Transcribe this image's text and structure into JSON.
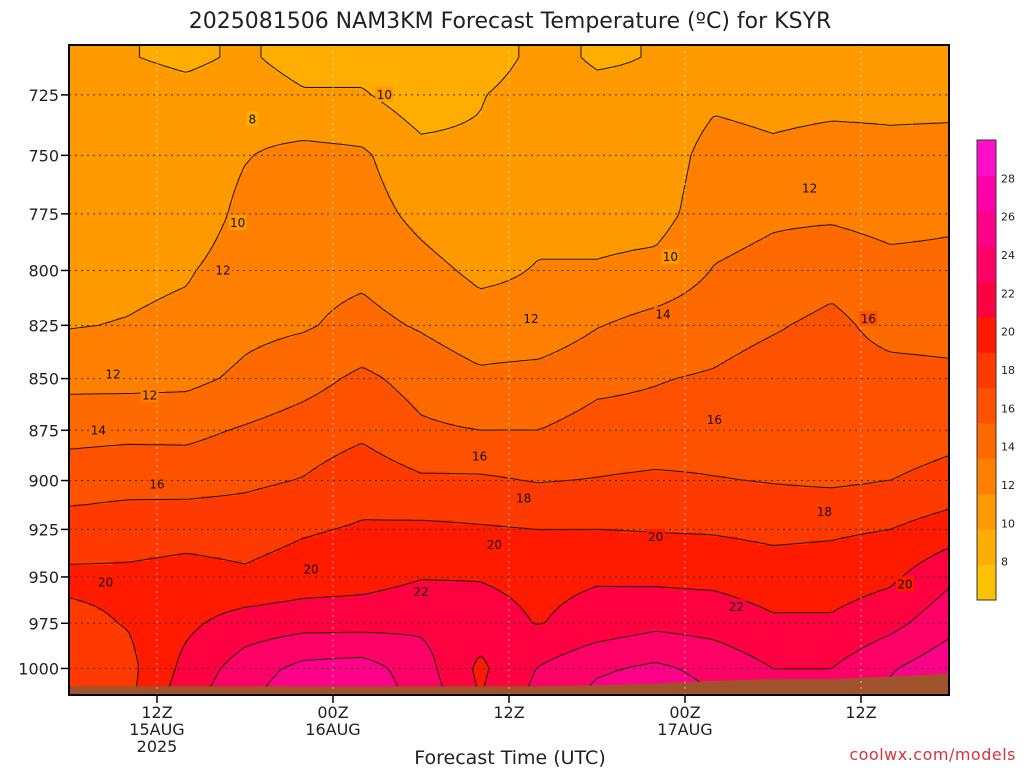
{
  "chart_data": {
    "type": "heatmap",
    "title": "2025081506 NAM3KM Forecast Temperature (ºC) for KSYR",
    "xlabel": "Forecast Time (UTC)",
    "ylabel": "",
    "credit": "coolwx.com/models",
    "y_scale": "log",
    "y_inverted": true,
    "ylim": [
      1015,
      705
    ],
    "y_ticks": [
      "725",
      "750",
      "775",
      "800",
      "825",
      "850",
      "875",
      "900",
      "925",
      "950",
      "975",
      "1000"
    ],
    "xlim": [
      6,
      66
    ],
    "x_ticks": [
      {
        "hour": 12,
        "lines": [
          "12Z",
          "15AUG",
          "2025"
        ]
      },
      {
        "hour": 24,
        "lines": [
          "00Z",
          "16AUG"
        ]
      },
      {
        "hour": 36,
        "lines": [
          "12Z"
        ]
      },
      {
        "hour": 48,
        "lines": [
          "00Z",
          "17AUG"
        ]
      },
      {
        "hour": 60,
        "lines": [
          "12Z"
        ]
      }
    ],
    "grid": true,
    "colorbar": {
      "levels": [
        6,
        8,
        10,
        12,
        14,
        16,
        18,
        20,
        22,
        24,
        26,
        28,
        30
      ],
      "labels": [
        "8",
        "10",
        "12",
        "14",
        "16",
        "18",
        "20",
        "22",
        "24",
        "26",
        "28"
      ],
      "colors": [
        "#ffc200",
        "#ffad00",
        "#ff9900",
        "#ff8000",
        "#ff6a00",
        "#ff5200",
        "#ff3a00",
        "#ff1a00",
        "#ff0040",
        "#ff0066",
        "#ff0088",
        "#ff00a8",
        "#ff10c8"
      ]
    },
    "x": [
      6,
      10,
      14,
      18,
      22,
      26,
      30,
      34,
      38,
      42,
      46,
      50,
      54,
      58,
      62,
      66
    ],
    "series": [
      {
        "pressure": 710,
        "temperature": [
          10.4,
          10.1,
          9.6,
          10.3,
          9.2,
          9.2,
          8.0,
          8.4,
          10.8,
          9.7,
          10.1,
          10.6,
          10.8,
          10.6,
          10.7,
          10.9
        ]
      },
      {
        "pressure": 725,
        "temperature": [
          10.9,
          11.0,
          10.6,
          11.1,
          10.2,
          10.2,
          8.9,
          9.8,
          11.5,
          10.6,
          10.5,
          11.6,
          11.3,
          11.4,
          11.5,
          11.5
        ]
      },
      {
        "pressure": 750,
        "temperature": [
          10.6,
          11.5,
          10.8,
          11.9,
          12.6,
          12.3,
          10.6,
          10.5,
          11.3,
          10.1,
          10.8,
          12.8,
          12.4,
          12.8,
          12.5,
          12.6
        ]
      },
      {
        "pressure": 775,
        "temperature": [
          10.6,
          11.5,
          10.8,
          12.5,
          12.9,
          12.8,
          11.5,
          10.5,
          11.6,
          11.2,
          11.2,
          13.2,
          13.7,
          13.7,
          13.3,
          13.6
        ]
      },
      {
        "pressure": 800,
        "temperature": [
          11.3,
          11.5,
          11.8,
          13.0,
          13.4,
          13.6,
          12.6,
          11.6,
          12.1,
          12.2,
          12.6,
          14.1,
          14.6,
          15.3,
          14.6,
          14.6
        ]
      },
      {
        "pressure": 825,
        "temperature": [
          11.9,
          12.1,
          12.5,
          13.5,
          13.8,
          14.6,
          13.8,
          12.8,
          12.6,
          13.9,
          14.7,
          15.2,
          15.8,
          16.5,
          15.3,
          15.2
        ]
      },
      {
        "pressure": 850,
        "temperature": [
          13.4,
          13.4,
          13.5,
          14.4,
          15.3,
          16.4,
          15.3,
          14.4,
          14.8,
          15.6,
          15.9,
          16.2,
          16.9,
          16.8,
          16.7,
          16.5
        ]
      },
      {
        "pressure": 875,
        "temperature": [
          15.4,
          15.5,
          15.5,
          16.2,
          16.9,
          17.6,
          16.3,
          16.0,
          16.0,
          16.6,
          16.6,
          17.0,
          17.3,
          17.5,
          17.0,
          17.4
        ]
      },
      {
        "pressure": 900,
        "temperature": [
          17.0,
          17.3,
          17.2,
          17.6,
          18.1,
          19.2,
          18.3,
          18.3,
          17.9,
          18.1,
          18.4,
          18.1,
          17.9,
          17.7,
          18.0,
          18.6
        ]
      },
      {
        "pressure": 925,
        "temperature": [
          18.9,
          19.1,
          19.3,
          19.2,
          19.8,
          20.2,
          20.4,
          20.2,
          20.0,
          20.0,
          19.9,
          19.8,
          19.5,
          19.7,
          20.0,
          21.0
        ]
      },
      {
        "pressure": 950,
        "temperature": [
          20.4,
          20.4,
          20.7,
          20.3,
          20.9,
          21.2,
          21.9,
          21.9,
          21.5,
          21.8,
          21.6,
          21.5,
          21.0,
          21.0,
          21.6,
          23.6
        ]
      },
      {
        "pressure": 975,
        "temperature": [
          19.5,
          20.1,
          21.6,
          22.9,
          23.3,
          23.3,
          23.6,
          22.9,
          21.9,
          22.8,
          23.5,
          23.2,
          22.3,
          22.3,
          23.4,
          25.3
        ]
      },
      {
        "pressure": 1000,
        "temperature": [
          19.2,
          19.4,
          22.6,
          25.0,
          26.6,
          26.9,
          24.9,
          21.6,
          24.1,
          25.7,
          26.4,
          25.4,
          24.0,
          24.0,
          25.8,
          27.4
        ]
      },
      {
        "pressure": 1015,
        "temperature": [
          19.5,
          19.5,
          23.2,
          25.6,
          27.3,
          27.3,
          25.4,
          21.9,
          24.6,
          26.5,
          27.1,
          26.1,
          24.7,
          24.7,
          26.5,
          28.1
        ]
      }
    ],
    "contour_labels": [
      {
        "text": "8",
        "hour": 18.5,
        "pressure": 735
      },
      {
        "text": "10",
        "hour": 27.5,
        "pressure": 725
      },
      {
        "text": "10",
        "hour": 17.5,
        "pressure": 779
      },
      {
        "text": "10",
        "hour": 47.0,
        "pressure": 794
      },
      {
        "text": "12",
        "hour": 9.0,
        "pressure": 848
      },
      {
        "text": "12",
        "hour": 11.5,
        "pressure": 858
      },
      {
        "text": "12",
        "hour": 16.5,
        "pressure": 800
      },
      {
        "text": "12",
        "hour": 37.5,
        "pressure": 822
      },
      {
        "text": "12",
        "hour": 56.5,
        "pressure": 764
      },
      {
        "text": "14",
        "hour": 8.0,
        "pressure": 875
      },
      {
        "text": "14",
        "hour": 46.5,
        "pressure": 820
      },
      {
        "text": "16",
        "hour": 12.0,
        "pressure": 902
      },
      {
        "text": "16",
        "hour": 34.0,
        "pressure": 888
      },
      {
        "text": "16",
        "hour": 50.0,
        "pressure": 870
      },
      {
        "text": "16",
        "hour": 60.5,
        "pressure": 822
      },
      {
        "text": "18",
        "hour": 37.0,
        "pressure": 909
      },
      {
        "text": "18",
        "hour": 57.5,
        "pressure": 916
      },
      {
        "text": "20",
        "hour": 8.5,
        "pressure": 953
      },
      {
        "text": "20",
        "hour": 22.5,
        "pressure": 946
      },
      {
        "text": "20",
        "hour": 35.0,
        "pressure": 933
      },
      {
        "text": "20",
        "hour": 46.0,
        "pressure": 929
      },
      {
        "text": "20",
        "hour": 63.0,
        "pressure": 954
      },
      {
        "text": "22",
        "hour": 30.0,
        "pressure": 958
      },
      {
        "text": "22",
        "hour": 51.5,
        "pressure": 966
      }
    ],
    "ground": {
      "color": "#a0522d",
      "pressure": [
        1010,
        1010,
        1010,
        1010,
        1010,
        1010,
        1010,
        1010,
        1010,
        1009.5,
        1008.5,
        1007,
        1006,
        1006,
        1004.5,
        1003
      ]
    }
  }
}
